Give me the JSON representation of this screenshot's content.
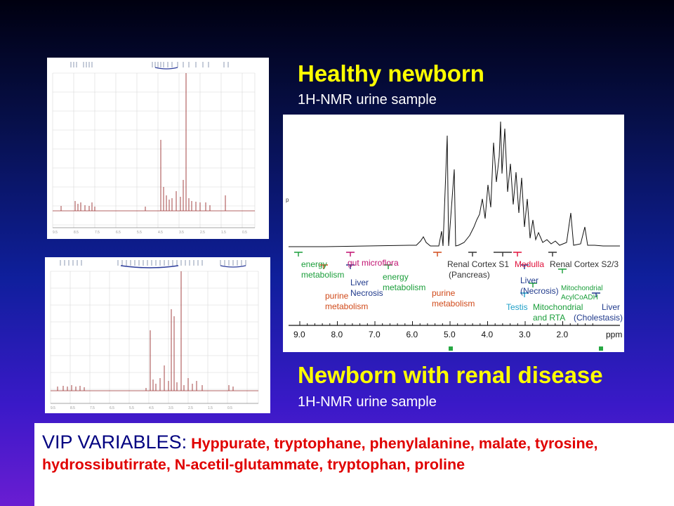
{
  "titles": {
    "healthy": "Healthy newborn",
    "healthy_sub": "1H-NMR urine sample",
    "renal": "Newborn with renal disease",
    "renal_sub": "1H-NMR urine sample"
  },
  "vip": {
    "label": "VIP VARIABLES:",
    "metabolites": "Hyppurate, tryptophane, phenylalanine, malate, tyrosine, hydrossibutirrate, N-acetil-glutammate, tryptophan, proline"
  },
  "main_chart": {
    "axis_unit": "ppm",
    "ticks": [
      "9.0",
      "8.0",
      "7.0",
      "6.0",
      "5.0",
      "4.0",
      "3.0",
      "2.0"
    ],
    "annotations": [
      {
        "text": "energy",
        "color": "#1a9e3a"
      },
      {
        "text": "metabolism",
        "color": "#1a9e3a"
      },
      {
        "text": "gut microflora",
        "color": "#c01070"
      },
      {
        "text": "Liver",
        "color": "#203a8c"
      },
      {
        "text": "Necrosis",
        "color": "#203a8c"
      },
      {
        "text": "energy",
        "color": "#1a9e3a"
      },
      {
        "text": "metabolism",
        "color": "#1a9e3a"
      },
      {
        "text": "purine",
        "color": "#d04a1a"
      },
      {
        "text": "metabolism",
        "color": "#d04a1a"
      },
      {
        "text": "purine",
        "color": "#d04a1a"
      },
      {
        "text": "metabolism",
        "color": "#d04a1a"
      },
      {
        "text": "Renal Cortex S1",
        "color": "#333333"
      },
      {
        "text": "(Pancreas)",
        "color": "#333333"
      },
      {
        "text": "Medulla",
        "color": "#e0103a"
      },
      {
        "text": "Renal Cortex S2/3",
        "color": "#333333"
      },
      {
        "text": "Liver",
        "color": "#203a8c"
      },
      {
        "text": "(Necrosis)",
        "color": "#203a8c"
      },
      {
        "text": "Testis",
        "color": "#20a0c8"
      },
      {
        "text": "Mitochondrial",
        "color": "#1a9e3a"
      },
      {
        "text": "and RTA",
        "color": "#1a9e3a"
      },
      {
        "text": "Mitochondrial",
        "color": "#1a9e3a"
      },
      {
        "text": "AcylCoADH",
        "color": "#1a9e3a"
      },
      {
        "text": "Liver",
        "color": "#203a8c"
      },
      {
        "text": "(Cholestasis)",
        "color": "#203a8c"
      }
    ]
  }
}
